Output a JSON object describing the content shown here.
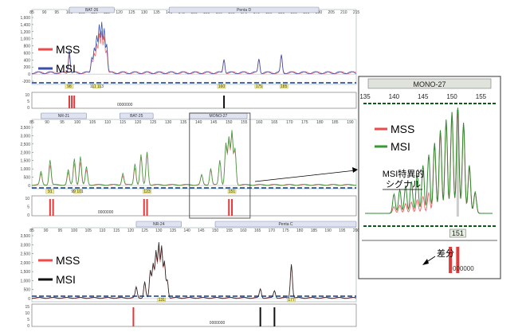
{
  "chart_data": [
    {
      "id": "top",
      "type": "line",
      "x_ticks": [
        "85",
        "90",
        "95",
        "100",
        "105",
        "110",
        "115",
        "120",
        "125",
        "130",
        "135",
        "140",
        "145",
        "150",
        "155",
        "160",
        "165",
        "170",
        "175",
        "180",
        "185",
        "190",
        "195",
        "200",
        "205",
        "210",
        "215"
      ],
      "y_ticks": [
        "1,600",
        "1,400",
        "1,200",
        "1,000",
        "800",
        "600",
        "400",
        "200",
        "0",
        "-200"
      ],
      "lower_y_ticks": [
        "10",
        "5",
        "0"
      ],
      "loci": [
        {
          "label": "BAT-26"
        },
        {
          "label": "Penta D"
        }
      ],
      "marker_labels": [
        "98",
        "111 113",
        "160",
        "175",
        "185"
      ],
      "lower_caption": "0000000",
      "legend": [
        {
          "name": "MSS",
          "color": "#ee4a4a"
        },
        {
          "name": "MSI",
          "color": "#3a4fa8"
        }
      ],
      "series": [
        {
          "name": "MSS",
          "color": "#ee6e6e"
        },
        {
          "name": "MSI",
          "color": "#3a4fa8"
        }
      ],
      "peaks": [
        {
          "x": 100,
          "y": 650
        },
        {
          "x": 109,
          "y": 450
        },
        {
          "x": 110,
          "y": 700
        },
        {
          "x": 111,
          "y": 1000
        },
        {
          "x": 112,
          "y": 1300
        },
        {
          "x": 113,
          "y": 1400
        },
        {
          "x": 114,
          "y": 1250
        },
        {
          "x": 115,
          "y": 800
        },
        {
          "x": 162,
          "y": 400
        },
        {
          "x": 176,
          "y": 400
        },
        {
          "x": 185,
          "y": 500
        }
      ],
      "lower_bars": [
        {
          "x": 100,
          "color": "#e23a3a"
        },
        {
          "x": 101,
          "color": "#e23a3a"
        },
        {
          "x": 102,
          "color": "#e23a3a"
        },
        {
          "x": 162,
          "color": "#111111"
        }
      ]
    },
    {
      "id": "middle",
      "type": "line",
      "x_ticks": [
        "85",
        "90",
        "95",
        "100",
        "105",
        "110",
        "115",
        "120",
        "125",
        "130",
        "135",
        "140",
        "145",
        "150",
        "155",
        "160",
        "165",
        "170",
        "175",
        "180",
        "185",
        "190"
      ],
      "y_ticks": [
        "3,500",
        "3,000",
        "2,500",
        "2,000",
        "1,500",
        "1,000",
        "500",
        "0"
      ],
      "lower_y_ticks": [
        "10",
        "5",
        "0"
      ],
      "loci": [
        {
          "label": "NR-21"
        },
        {
          "label": "BAT-25"
        },
        {
          "label": "MONO-27"
        }
      ],
      "marker_labels": [
        "91",
        "99 101",
        "123",
        "151"
      ],
      "lower_caption": "0000000",
      "series": [
        {
          "name": "MSS",
          "color": "#ee7a7a"
        },
        {
          "name": "MSI",
          "color": "#3f9a3f"
        }
      ],
      "peaks": [
        {
          "x": 88,
          "y": 800
        },
        {
          "x": 91,
          "y": 1500
        },
        {
          "x": 97,
          "y": 900
        },
        {
          "x": 99,
          "y": 1600
        },
        {
          "x": 101,
          "y": 1700
        },
        {
          "x": 103,
          "y": 1100
        },
        {
          "x": 115,
          "y": 700
        },
        {
          "x": 119,
          "y": 1300
        },
        {
          "x": 121,
          "y": 1800
        },
        {
          "x": 123,
          "y": 2000
        },
        {
          "x": 141,
          "y": 600
        },
        {
          "x": 144,
          "y": 1000
        },
        {
          "x": 147,
          "y": 1500
        },
        {
          "x": 149,
          "y": 2500
        },
        {
          "x": 150,
          "y": 2800
        },
        {
          "x": 151,
          "y": 3200
        },
        {
          "x": 152,
          "y": 2200
        }
      ],
      "lower_bars": [
        {
          "x": 91,
          "color": "#e23a3a"
        },
        {
          "x": 92,
          "color": "#e23a3a"
        },
        {
          "x": 122,
          "color": "#e23a3a"
        },
        {
          "x": 123,
          "color": "#e23a3a"
        },
        {
          "x": 150,
          "color": "#e23a3a"
        },
        {
          "x": 151,
          "color": "#e23a3a"
        }
      ]
    },
    {
      "id": "bottom",
      "type": "line",
      "x_ticks": [
        "85",
        "90",
        "95",
        "100",
        "105",
        "110",
        "115",
        "120",
        "125",
        "130",
        "135",
        "140",
        "145",
        "150",
        "155",
        "160",
        "165",
        "170",
        "175",
        "180",
        "185",
        "190",
        "195",
        "200"
      ],
      "y_ticks": [
        "3,500",
        "3,000",
        "2,500",
        "2,000",
        "1,500",
        "1,000",
        "500",
        "0"
      ],
      "lower_y_ticks": [
        "15",
        "10",
        "5",
        "0"
      ],
      "loci": [
        {
          "label": "NR-24"
        },
        {
          "label": "Penta C"
        }
      ],
      "marker_labels": [
        "131",
        "177"
      ],
      "lower_caption": "0000000",
      "legend": [
        {
          "name": "MSS",
          "color": "#ee4a4a"
        },
        {
          "name": "MSI",
          "color": "#111111"
        }
      ],
      "series": [
        {
          "name": "MSS",
          "color": "#ee6e6e"
        },
        {
          "name": "MSI",
          "color": "#222222"
        }
      ],
      "peaks": [
        {
          "x": 122,
          "y": 600
        },
        {
          "x": 125,
          "y": 900
        },
        {
          "x": 127,
          "y": 1500
        },
        {
          "x": 128,
          "y": 1900
        },
        {
          "x": 129,
          "y": 2600
        },
        {
          "x": 130,
          "y": 3000
        },
        {
          "x": 131,
          "y": 2800
        },
        {
          "x": 132,
          "y": 2000
        },
        {
          "x": 133,
          "y": 1000
        },
        {
          "x": 166,
          "y": 500
        },
        {
          "x": 171,
          "y": 400
        },
        {
          "x": 177,
          "y": 1900
        }
      ],
      "lower_bars": [
        {
          "x": 121,
          "color": "#e23a3a"
        },
        {
          "x": 166,
          "color": "#111111"
        },
        {
          "x": 171,
          "color": "#111111"
        }
      ]
    },
    {
      "id": "zoom",
      "type": "line",
      "title": "MONO-27",
      "x_ticks": [
        "135",
        "140",
        "145",
        "150",
        "155"
      ],
      "xlim": [
        135,
        157
      ],
      "marker_label": "151",
      "legend": [
        {
          "name": "MSS",
          "color": "#ee4a4a"
        },
        {
          "name": "MSI",
          "color": "#3a9a3a"
        }
      ],
      "series": [
        {
          "name": "MSS",
          "color": "#ee6e6e"
        },
        {
          "name": "MSI",
          "color": "#2f8a2f"
        }
      ],
      "peaks": [
        {
          "x": 140,
          "y": 0.18
        },
        {
          "x": 141,
          "y": 0.22
        },
        {
          "x": 142,
          "y": 0.26
        },
        {
          "x": 143,
          "y": 0.3
        },
        {
          "x": 144,
          "y": 0.36
        },
        {
          "x": 145,
          "y": 0.45
        },
        {
          "x": 146,
          "y": 0.55
        },
        {
          "x": 147,
          "y": 0.66
        },
        {
          "x": 148,
          "y": 0.78
        },
        {
          "x": 149,
          "y": 0.88
        },
        {
          "x": 150,
          "y": 0.95
        },
        {
          "x": 151,
          "y": 1.0
        },
        {
          "x": 152,
          "y": 0.85
        },
        {
          "x": 153,
          "y": 0.45
        },
        {
          "x": 154,
          "y": 0.2
        }
      ],
      "annotation_signal": "MSI特異的\nシグナル",
      "annotation_diff": "差分",
      "lower_caption": "000000",
      "lower_bars": [
        {
          "x": 150,
          "color": "#e23a3a"
        },
        {
          "x": 151,
          "color": "#e23a3a"
        }
      ]
    }
  ]
}
